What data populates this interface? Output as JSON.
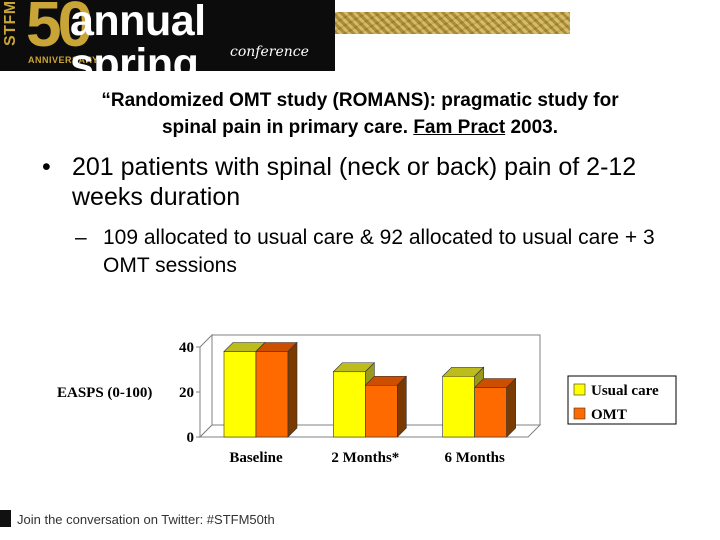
{
  "banner": {
    "stfm_vertical": "STFM",
    "number": "50",
    "anniversary": "ANNIVERSARY",
    "name": "annual spring",
    "subname": "conference"
  },
  "title": {
    "line1": "“Randomized OMT study (ROMANS): pragmatic study for",
    "line2_pre": "spinal pain in primary care.  ",
    "line2_journal": "Fam Pract",
    "line2_post": " 2003."
  },
  "bullets": {
    "level1_mark": "•",
    "level1_text": "201 patients with spinal (neck or back) pain of 2-12 weeks duration",
    "level2_mark": "–",
    "level2_text": "109 allocated to usual care & 92 allocated to usual care + 3 OMT sessions"
  },
  "chart_data": {
    "type": "bar",
    "categories": [
      "Baseline",
      "2 Months*",
      "6 Months"
    ],
    "series": [
      {
        "name": "Usual care",
        "values": [
          38,
          29,
          27
        ],
        "color": "#ffff00",
        "top_color": "#bcbc1c",
        "side_color": "#9a9a18"
      },
      {
        "name": "OMT",
        "values": [
          38,
          23,
          22
        ],
        "color": "#ff6a00",
        "top_color": "#cc4e00",
        "side_color": "#7a3a00"
      }
    ],
    "ylabel": "EASPS (0-100)",
    "yticks": [
      0,
      20,
      40
    ],
    "ylim": [
      0,
      40
    ],
    "legend_position": "right",
    "chart_style": "3d-clustered-bar",
    "grid": false
  },
  "footer": {
    "text": "Join the conversation on Twitter: #STFM50th"
  }
}
